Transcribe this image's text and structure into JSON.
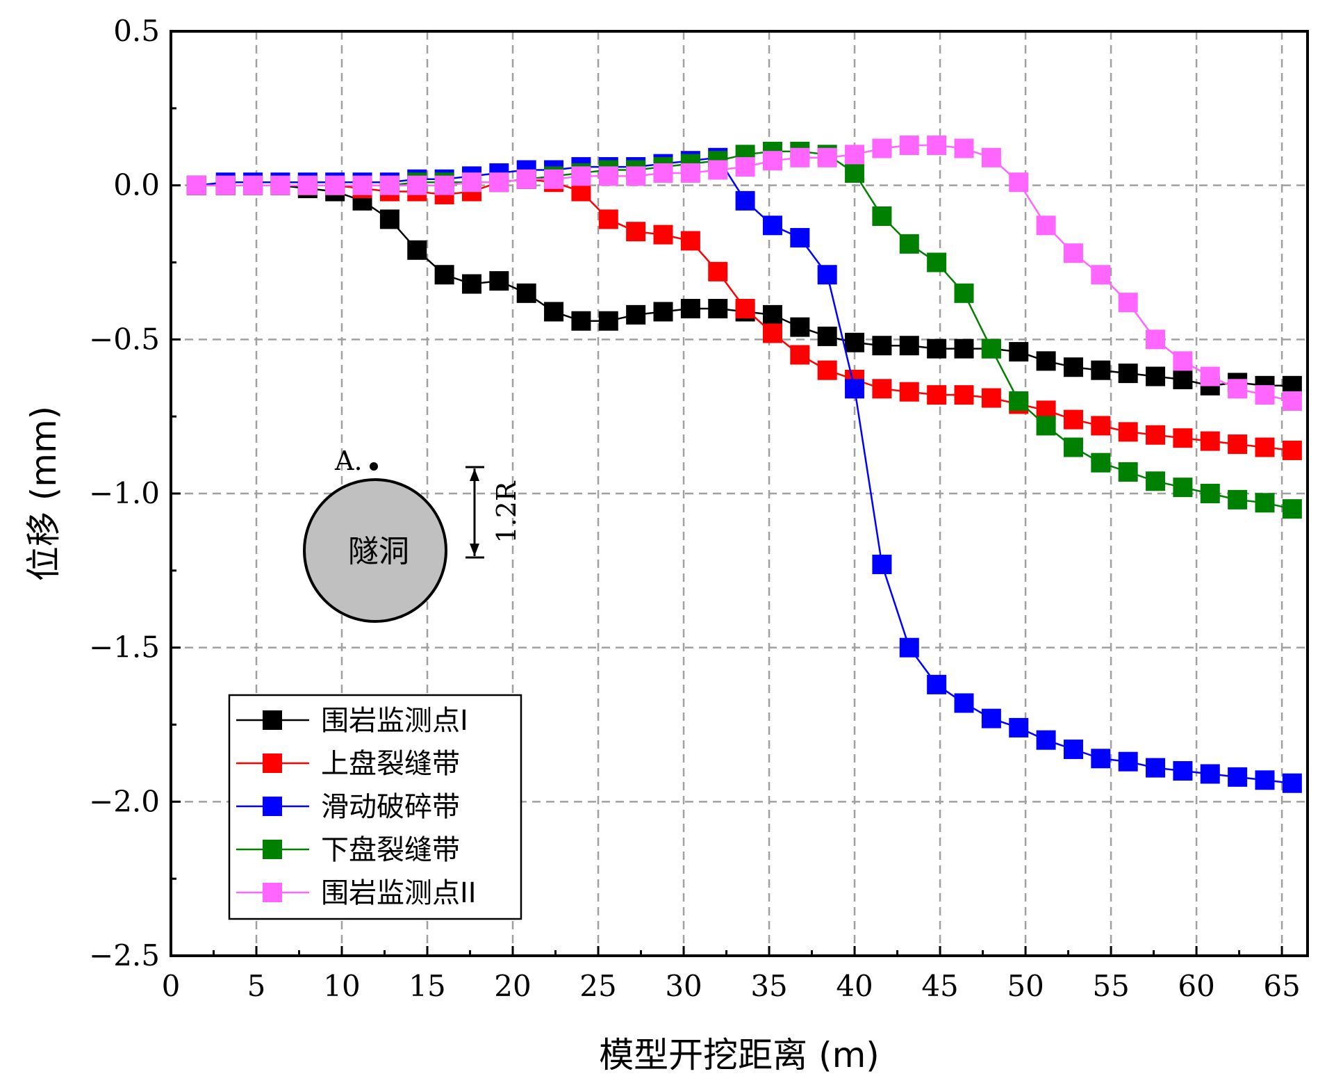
{
  "chart_data": {
    "type": "line",
    "xlabel": "模型开挖距离 (m)",
    "ylabel": "位移 (mm)",
    "xlim": [
      0,
      66.5
    ],
    "ylim": [
      -2.5,
      0.5
    ],
    "xticks": [
      0,
      5,
      10,
      15,
      20,
      25,
      30,
      35,
      40,
      45,
      50,
      55,
      60,
      65
    ],
    "yticks": [
      0.5,
      0.0,
      -0.5,
      -1.0,
      -1.5,
      -2.0,
      -2.5
    ],
    "ytick_labels": [
      "0.5",
      "0.0",
      "−0.5",
      "−1.0",
      "−1.5",
      "−2.0",
      "−2.5"
    ],
    "grid": true,
    "legend_position": "bottom-left",
    "x": [
      1.5,
      3.2,
      4.8,
      6.4,
      8.0,
      9.6,
      11.2,
      12.8,
      14.4,
      16.0,
      17.6,
      19.2,
      20.8,
      22.4,
      24.0,
      25.6,
      27.2,
      28.8,
      30.4,
      32.0,
      33.6,
      35.2,
      36.8,
      38.4,
      40.0,
      41.6,
      43.2,
      44.8,
      46.4,
      48.0,
      49.6,
      51.2,
      52.8,
      54.4,
      56.0,
      57.6,
      59.2,
      60.8,
      62.4,
      64.0,
      65.6
    ],
    "series": [
      {
        "name": "围岩监测点I",
        "color": "#000000",
        "values": [
          0.0,
          0.0,
          0.0,
          0.0,
          -0.01,
          -0.02,
          -0.05,
          -0.11,
          -0.21,
          -0.29,
          -0.32,
          -0.31,
          -0.35,
          -0.41,
          -0.44,
          -0.44,
          -0.42,
          -0.41,
          -0.4,
          -0.4,
          -0.41,
          -0.42,
          -0.46,
          -0.49,
          -0.51,
          -0.52,
          -0.52,
          -0.53,
          -0.53,
          -0.53,
          -0.54,
          -0.57,
          -0.59,
          -0.6,
          -0.61,
          -0.62,
          -0.63,
          -0.65,
          -0.64,
          -0.65,
          -0.65
        ]
      },
      {
        "name": "上盘裂缝带",
        "color": "#ff0000",
        "values": [
          0.0,
          0.0,
          0.0,
          0.0,
          0.0,
          0.0,
          -0.01,
          -0.02,
          -0.02,
          -0.03,
          -0.02,
          0.01,
          0.02,
          0.01,
          -0.02,
          -0.11,
          -0.15,
          -0.16,
          -0.18,
          -0.28,
          -0.4,
          -0.48,
          -0.55,
          -0.6,
          -0.63,
          -0.66,
          -0.67,
          -0.68,
          -0.68,
          -0.69,
          -0.71,
          -0.73,
          -0.76,
          -0.78,
          -0.8,
          -0.81,
          -0.82,
          -0.83,
          -0.84,
          -0.85,
          -0.86
        ]
      },
      {
        "name": "滑动破碎带",
        "color": "#0000ff",
        "values": [
          0.0,
          0.01,
          0.01,
          0.01,
          0.01,
          0.01,
          0.01,
          0.01,
          0.02,
          0.02,
          0.03,
          0.04,
          0.05,
          0.05,
          0.06,
          0.06,
          0.06,
          0.07,
          0.08,
          0.09,
          -0.05,
          -0.13,
          -0.17,
          -0.29,
          -0.66,
          -1.23,
          -1.5,
          -1.62,
          -1.68,
          -1.73,
          -1.76,
          -1.8,
          -1.83,
          -1.86,
          -1.87,
          -1.89,
          -1.9,
          -1.91,
          -1.92,
          -1.93,
          -1.94
        ]
      },
      {
        "name": "下盘裂缝带",
        "color": "#008000",
        "values": [
          0.0,
          0.0,
          0.0,
          0.0,
          0.0,
          0.0,
          0.0,
          0.0,
          0.01,
          0.01,
          0.01,
          0.01,
          0.02,
          0.03,
          0.04,
          0.05,
          0.05,
          0.06,
          0.07,
          0.08,
          0.1,
          0.11,
          0.11,
          0.1,
          0.04,
          -0.1,
          -0.19,
          -0.25,
          -0.35,
          -0.53,
          -0.7,
          -0.78,
          -0.85,
          -0.9,
          -0.93,
          -0.96,
          -0.98,
          -1.0,
          -1.02,
          -1.03,
          -1.05
        ]
      },
      {
        "name": "围岩监测点II",
        "color": "#ff66ff",
        "values": [
          0.0,
          0.0,
          0.0,
          0.0,
          0.0,
          0.0,
          0.0,
          0.0,
          0.0,
          0.0,
          0.01,
          0.01,
          0.02,
          0.02,
          0.03,
          0.03,
          0.03,
          0.04,
          0.04,
          0.05,
          0.06,
          0.08,
          0.09,
          0.09,
          0.1,
          0.12,
          0.13,
          0.13,
          0.12,
          0.09,
          0.01,
          -0.13,
          -0.22,
          -0.29,
          -0.38,
          -0.5,
          -0.57,
          -0.62,
          -0.66,
          -0.68,
          -0.7
        ]
      }
    ]
  },
  "inset": {
    "point_label": "A.",
    "tunnel_label": "隧洞",
    "distance_label": "1.2R",
    "tunnel_fill": "#c0c0c0"
  }
}
